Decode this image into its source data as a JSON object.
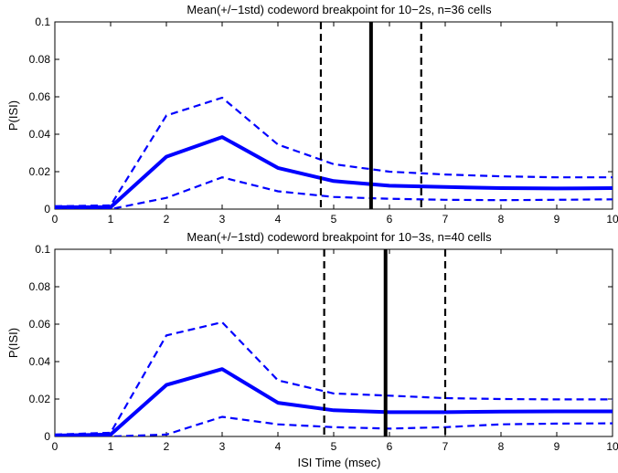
{
  "chart_data": [
    {
      "type": "line",
      "title": "Mean(+/−1std) codeword breakpoint for 10−2s, n=36 cells",
      "xlabel": "",
      "ylabel": "P(ISI)",
      "xlim": [
        0,
        10
      ],
      "ylim": [
        0,
        0.1
      ],
      "xticks": [
        "0",
        "1",
        "2",
        "3",
        "4",
        "5",
        "6",
        "7",
        "8",
        "9",
        "10"
      ],
      "yticks": [
        "0",
        "0.02",
        "0.04",
        "0.06",
        "0.08",
        "0.1"
      ],
      "grid": false,
      "x": [
        0,
        1,
        2,
        3,
        4,
        5,
        6,
        7,
        8,
        9,
        10
      ],
      "series": [
        {
          "role": "mean",
          "color": "#0000ff",
          "style": "solid",
          "values": [
            0.001,
            0.001,
            0.028,
            0.0385,
            0.022,
            0.015,
            0.0125,
            0.0118,
            0.0112,
            0.011,
            0.0112
          ]
        },
        {
          "role": "upper",
          "color": "#0000ff",
          "style": "dashed",
          "values": [
            0.0015,
            0.002,
            0.05,
            0.0595,
            0.0345,
            0.024,
            0.02,
            0.0185,
            0.0175,
            0.017,
            0.017
          ]
        },
        {
          "role": "lower",
          "color": "#0000ff",
          "style": "dashed",
          "values": [
            0.0005,
            0.0,
            0.006,
            0.017,
            0.0095,
            0.0065,
            0.0055,
            0.005,
            0.0048,
            0.005,
            0.0052
          ]
        }
      ],
      "vlines": [
        {
          "role": "mean",
          "x": 5.67,
          "color": "#000000",
          "style": "solid"
        },
        {
          "role": "minus-std",
          "x": 4.77,
          "color": "#000000",
          "style": "dashed"
        },
        {
          "role": "plus-std",
          "x": 6.57,
          "color": "#000000",
          "style": "dashed"
        }
      ]
    },
    {
      "type": "line",
      "title": "Mean(+/−1std) codeword breakpoint for 10−3s, n=40 cells",
      "xlabel": "ISI Time (msec)",
      "ylabel": "P(ISI)",
      "xlim": [
        0,
        10
      ],
      "ylim": [
        0,
        0.1
      ],
      "xticks": [
        "0",
        "1",
        "2",
        "3",
        "4",
        "5",
        "6",
        "7",
        "8",
        "9",
        "10"
      ],
      "yticks": [
        "0",
        "0.02",
        "0.04",
        "0.06",
        "0.08",
        "0.1"
      ],
      "grid": false,
      "x": [
        0,
        1,
        2,
        3,
        4,
        5,
        6,
        7,
        8,
        9,
        10
      ],
      "series": [
        {
          "role": "mean",
          "color": "#0000ff",
          "style": "solid",
          "values": [
            0.0005,
            0.001,
            0.0275,
            0.036,
            0.018,
            0.014,
            0.013,
            0.013,
            0.0133,
            0.0134,
            0.0134
          ]
        },
        {
          "role": "upper",
          "color": "#0000ff",
          "style": "dashed",
          "values": [
            0.001,
            0.002,
            0.054,
            0.061,
            0.03,
            0.023,
            0.0218,
            0.0205,
            0.02,
            0.0198,
            0.0198
          ]
        },
        {
          "role": "lower",
          "color": "#0000ff",
          "style": "dashed",
          "values": [
            0.0,
            0.0,
            0.001,
            0.0105,
            0.0065,
            0.005,
            0.0042,
            0.005,
            0.0065,
            0.0069,
            0.007
          ]
        }
      ],
      "vlines": [
        {
          "role": "mean",
          "x": 5.93,
          "color": "#000000",
          "style": "solid"
        },
        {
          "role": "minus-std",
          "x": 4.83,
          "color": "#000000",
          "style": "dashed"
        },
        {
          "role": "plus-std",
          "x": 7.0,
          "color": "#000000",
          "style": "dashed"
        }
      ]
    }
  ]
}
